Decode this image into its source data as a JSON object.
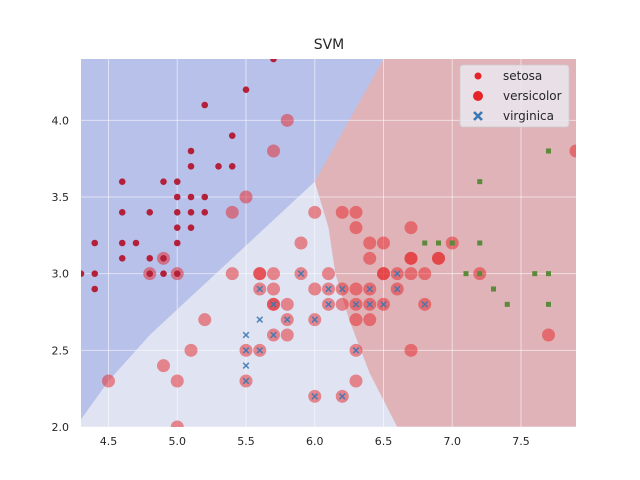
{
  "chart_data": {
    "type": "scatter",
    "title": "SVM",
    "xlabel": "",
    "ylabel": "",
    "xlim": [
      4.3,
      7.9
    ],
    "ylim": [
      2.0,
      4.4
    ],
    "xticks": [
      "4.5",
      "5.0",
      "5.5",
      "6.0",
      "6.5",
      "7.0",
      "7.5"
    ],
    "yticks": [
      "2.0",
      "2.5",
      "3.0",
      "3.5",
      "4.0"
    ],
    "grid": true,
    "legend_position": "top-right",
    "colors": {
      "region_blue": "#b8c1ea",
      "region_light": "#e0e3f2",
      "region_red": "#e0b3b8",
      "setosa": "#b4203a",
      "versicolor": "#e62326",
      "virginica": "#3c78b4",
      "green_markers": "#5a8a3a",
      "misclassified_fill": "#e8868e"
    },
    "regions": [
      {
        "name": "blue",
        "boundary": [
          [
            4.3,
            2.05
          ],
          [
            4.5,
            2.3
          ],
          [
            4.8,
            2.6
          ],
          [
            5.1,
            2.85
          ],
          [
            5.4,
            3.1
          ],
          [
            5.7,
            3.35
          ],
          [
            6.0,
            3.6
          ],
          [
            6.2,
            3.9
          ],
          [
            6.5,
            4.4
          ]
        ]
      },
      {
        "name": "red",
        "boundary": [
          [
            6.0,
            3.6
          ],
          [
            6.1,
            3.3
          ],
          [
            6.15,
            3.0
          ],
          [
            6.25,
            2.7
          ],
          [
            6.4,
            2.35
          ],
          [
            6.6,
            2.0
          ]
        ]
      }
    ],
    "series": [
      {
        "name": "setosa",
        "marker": "dot",
        "points": [
          [
            4.4,
            3.2
          ],
          [
            4.4,
            3.0
          ],
          [
            4.4,
            2.9
          ],
          [
            4.6,
            3.6
          ],
          [
            4.6,
            3.4
          ],
          [
            4.6,
            3.2
          ],
          [
            4.6,
            3.1
          ],
          [
            4.7,
            3.2
          ],
          [
            4.8,
            3.4
          ],
          [
            4.8,
            3.1
          ],
          [
            4.8,
            3.0
          ],
          [
            4.9,
            3.6
          ],
          [
            4.9,
            3.1
          ],
          [
            4.9,
            3.0
          ],
          [
            5.0,
            3.6
          ],
          [
            5.0,
            3.5
          ],
          [
            5.0,
            3.4
          ],
          [
            5.0,
            3.3
          ],
          [
            5.0,
            3.2
          ],
          [
            5.0,
            3.0
          ],
          [
            5.1,
            3.8
          ],
          [
            5.1,
            3.7
          ],
          [
            5.1,
            3.5
          ],
          [
            5.1,
            3.4
          ],
          [
            5.1,
            3.3
          ],
          [
            5.2,
            4.1
          ],
          [
            5.2,
            3.5
          ],
          [
            5.2,
            3.4
          ],
          [
            5.3,
            3.7
          ],
          [
            5.4,
            3.9
          ],
          [
            5.4,
            3.7
          ],
          [
            5.5,
            4.2
          ],
          [
            5.7,
            4.4
          ],
          [
            4.3,
            3.0
          ]
        ]
      },
      {
        "name": "versicolor",
        "marker": "large-dot",
        "points": [
          [
            6.4,
            3.2
          ],
          [
            6.9,
            3.1
          ],
          [
            5.5,
            2.3
          ],
          [
            6.5,
            2.8
          ],
          [
            5.7,
            2.8
          ],
          [
            6.3,
            3.3
          ],
          [
            4.9,
            2.4
          ],
          [
            6.6,
            2.9
          ],
          [
            5.2,
            2.7
          ],
          [
            5.0,
            2.0
          ],
          [
            5.9,
            3.0
          ],
          [
            6.0,
            2.2
          ],
          [
            6.1,
            2.9
          ],
          [
            5.6,
            2.9
          ],
          [
            6.7,
            3.1
          ],
          [
            5.6,
            3.0
          ],
          [
            5.8,
            2.7
          ],
          [
            6.2,
            2.2
          ],
          [
            5.6,
            2.5
          ],
          [
            5.9,
            3.2
          ],
          [
            6.1,
            2.8
          ],
          [
            6.3,
            2.5
          ],
          [
            6.4,
            2.9
          ],
          [
            6.6,
            3.0
          ],
          [
            6.8,
            2.8
          ],
          [
            6.7,
            3.0
          ],
          [
            6.0,
            2.9
          ],
          [
            5.7,
            2.6
          ],
          [
            6.0,
            2.7
          ],
          [
            5.4,
            3.0
          ],
          [
            6.0,
            3.4
          ],
          [
            6.7,
            3.1
          ],
          [
            6.3,
            2.3
          ],
          [
            5.6,
            3.0
          ],
          [
            5.5,
            2.5
          ],
          [
            6.1,
            3.0
          ],
          [
            5.8,
            2.6
          ],
          [
            5.0,
            2.3
          ],
          [
            5.7,
            3.0
          ],
          [
            5.7,
            2.9
          ],
          [
            6.2,
            2.9
          ],
          [
            5.1,
            2.5
          ],
          [
            5.7,
            2.8
          ],
          [
            7.0,
            3.2
          ],
          [
            6.5,
            3.0
          ],
          [
            6.3,
            2.9
          ],
          [
            6.4,
            2.8
          ],
          [
            6.3,
            2.7
          ],
          [
            6.5,
            3.2
          ],
          [
            6.7,
            2.5
          ],
          [
            7.7,
            2.6
          ],
          [
            7.9,
            3.8
          ],
          [
            4.5,
            2.3
          ],
          [
            4.8,
            3.0
          ],
          [
            4.9,
            3.1
          ],
          [
            5.0,
            3.0
          ],
          [
            5.4,
            3.4
          ],
          [
            5.5,
            3.5
          ],
          [
            5.7,
            3.8
          ],
          [
            5.8,
            4.0
          ],
          [
            6.2,
            3.4
          ],
          [
            6.3,
            3.4
          ],
          [
            6.4,
            3.1
          ],
          [
            6.7,
            3.3
          ],
          [
            6.9,
            3.1
          ],
          [
            6.5,
            3.0
          ],
          [
            6.4,
            2.7
          ],
          [
            6.8,
            3.0
          ],
          [
            7.2,
            3.0
          ],
          [
            5.8,
            2.8
          ],
          [
            6.2,
            2.8
          ],
          [
            6.3,
            2.8
          ]
        ]
      },
      {
        "name": "virginica",
        "marker": "x",
        "points": [
          [
            5.5,
            2.6
          ],
          [
            5.5,
            2.5
          ],
          [
            5.5,
            2.4
          ],
          [
            5.5,
            2.3
          ],
          [
            5.6,
            2.9
          ],
          [
            5.6,
            2.7
          ],
          [
            5.6,
            2.5
          ],
          [
            5.7,
            2.6
          ],
          [
            5.7,
            2.8
          ],
          [
            5.8,
            2.7
          ],
          [
            5.9,
            3.0
          ],
          [
            6.0,
            2.2
          ],
          [
            6.0,
            2.7
          ],
          [
            6.1,
            2.9
          ],
          [
            6.1,
            2.8
          ],
          [
            6.2,
            2.9
          ],
          [
            6.2,
            2.2
          ],
          [
            6.3,
            2.5
          ],
          [
            6.3,
            2.8
          ],
          [
            6.4,
            2.9
          ],
          [
            6.4,
            2.8
          ],
          [
            6.5,
            2.8
          ],
          [
            6.6,
            2.9
          ],
          [
            6.6,
            3.0
          ],
          [
            6.8,
            2.8
          ]
        ]
      },
      {
        "name": "green-squares",
        "marker": "square",
        "points": [
          [
            6.8,
            3.2
          ],
          [
            6.9,
            3.2
          ],
          [
            7.0,
            3.2
          ],
          [
            7.1,
            3.0
          ],
          [
            7.2,
            3.6
          ],
          [
            7.2,
            3.2
          ],
          [
            7.2,
            3.0
          ],
          [
            7.3,
            2.9
          ],
          [
            7.4,
            2.8
          ],
          [
            7.6,
            3.0
          ],
          [
            7.7,
            3.8
          ],
          [
            7.7,
            3.0
          ],
          [
            7.7,
            2.8
          ]
        ]
      }
    ],
    "legend": [
      {
        "label": "setosa",
        "marker": "dot"
      },
      {
        "label": "versicolor",
        "marker": "large-dot"
      },
      {
        "label": "virginica",
        "marker": "x"
      }
    ]
  }
}
